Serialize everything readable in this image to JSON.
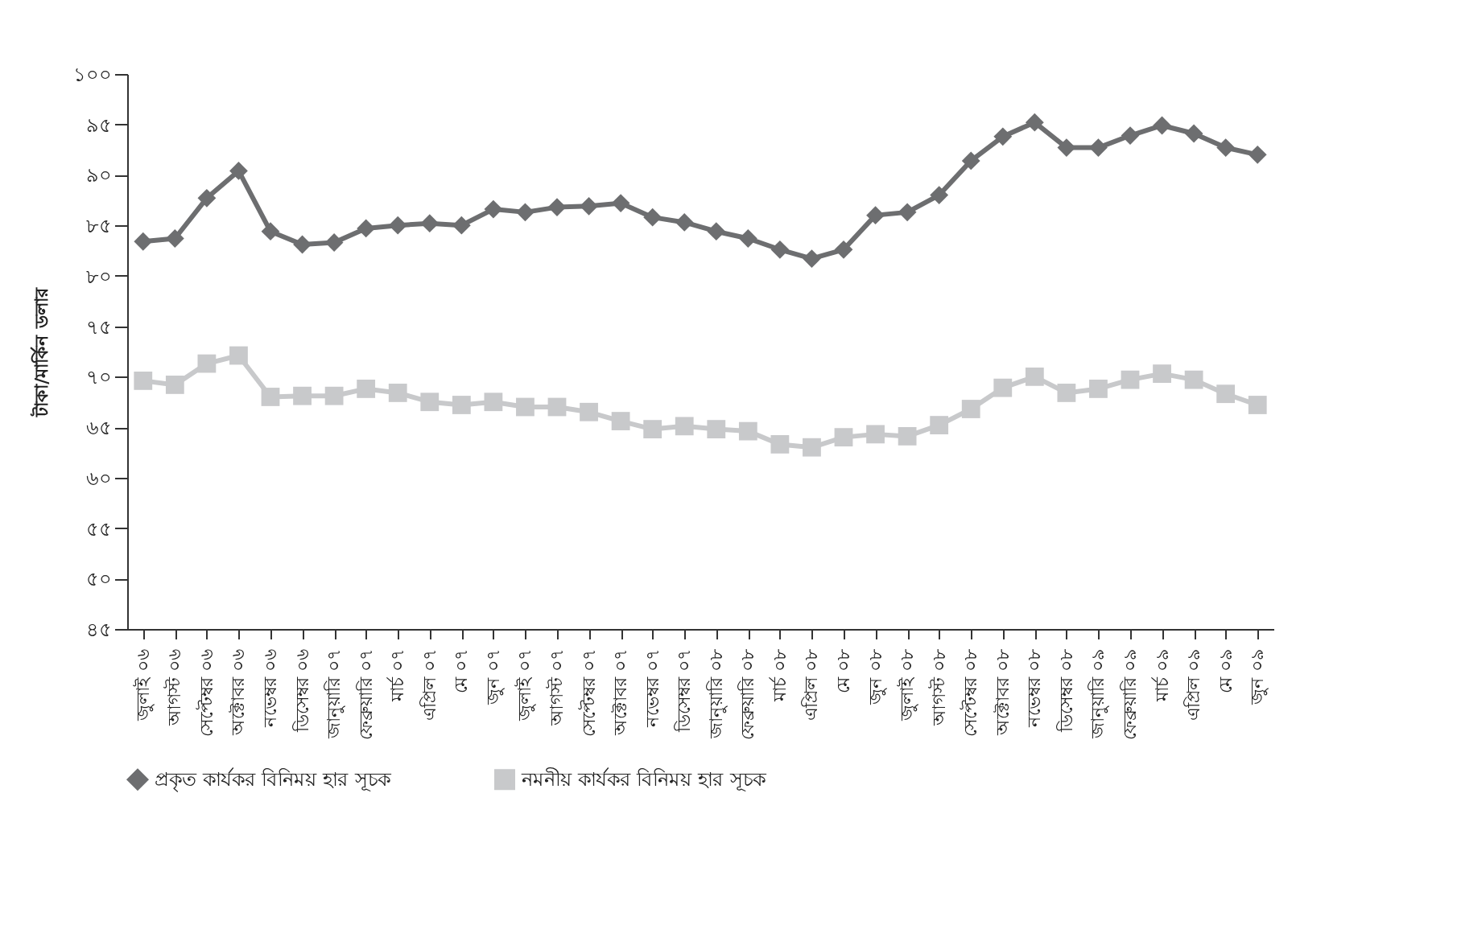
{
  "chart_data": {
    "type": "line",
    "ylabel": "টাকা/মার্কিন ডলার",
    "categories": [
      "জুলাই ০৬",
      "আগস্ট ০৬",
      "সেপ্টেম্বর ০৬",
      "অক্টোবর ০৬",
      "নভেম্বর ০৬",
      "ডিসেম্বর ০৬",
      "জানুয়ারি ০৭",
      "ফেব্রুয়ারি ০৭",
      "মার্চ ০৭",
      "এপ্রিল ০৭",
      "মে ০৭",
      "জুন ০৭",
      "জুলাই ০৭",
      "আগস্ট ০৭",
      "সেপ্টেম্বর ০৭",
      "অক্টোবর ০৭",
      "নভেম্বর ০৭",
      "ডিসেম্বর ০৭",
      "জানুয়ারি ০৮",
      "ফেব্রুয়ারি ০৮",
      "মার্চ ০৮",
      "এপ্রিল ০৮",
      "মে ০৮",
      "জুন ০৮",
      "জুলাই ০৮",
      "আগস্ট ০৮",
      "সেপ্টেম্বর ০৮",
      "অক্টোবর ০৮",
      "নভেম্বর ০৮",
      "ডিসেম্বর ০৮",
      "জানুয়ারি ০৯",
      "ফেব্রুয়ারি ০৯",
      "মার্চ ০৯",
      "এপ্রিল ০৯",
      "মে ০৯",
      "জুন ০৯"
    ],
    "series": [
      {
        "name": "প্রকৃত কার্যকর বিনিময় হার সূচক",
        "color": "#6d6e70",
        "marker": "diamond",
        "values": [
          83.4,
          83.7,
          87.7,
          90.4,
          84.4,
          83.1,
          83.3,
          84.7,
          85.0,
          85.2,
          85.0,
          86.6,
          86.3,
          86.8,
          86.9,
          87.2,
          85.8,
          85.3,
          84.4,
          83.7,
          82.6,
          81.7,
          82.6,
          86.0,
          86.3,
          88.0,
          91.4,
          93.8,
          95.2,
          92.7,
          92.7,
          93.9,
          94.9,
          94.1,
          92.7,
          92.0
        ]
      },
      {
        "name": "নমনীয় কার্যকর বিনিময় হার সূচক",
        "color": "#c8c9cb",
        "marker": "square",
        "values": [
          69.6,
          69.2,
          71.3,
          72.1,
          68.0,
          68.1,
          68.1,
          68.8,
          68.4,
          67.5,
          67.2,
          67.5,
          67.0,
          67.0,
          66.5,
          65.6,
          64.8,
          65.1,
          64.8,
          64.6,
          63.3,
          63.0,
          64.0,
          64.3,
          64.1,
          65.2,
          66.8,
          68.9,
          70.0,
          68.4,
          68.8,
          69.7,
          70.3,
          69.7,
          68.3,
          67.2
        ]
      }
    ],
    "ylim": [
      45,
      100
    ],
    "yticks": [
      {
        "value": 45,
        "label": "৪৫"
      },
      {
        "value": 50,
        "label": "৫০"
      },
      {
        "value": 55,
        "label": "৫৫"
      },
      {
        "value": 60,
        "label": "৬০"
      },
      {
        "value": 65,
        "label": "৬৫"
      },
      {
        "value": 70,
        "label": "৭০"
      },
      {
        "value": 75,
        "label": "৭৫"
      },
      {
        "value": 80,
        "label": "৮০"
      },
      {
        "value": 85,
        "label": "৮৫"
      },
      {
        "value": 90,
        "label": "৯০"
      },
      {
        "value": 95,
        "label": "৯৫"
      },
      {
        "value": 100,
        "label": "১০০"
      }
    ],
    "grid": false,
    "legend": "bottom"
  }
}
